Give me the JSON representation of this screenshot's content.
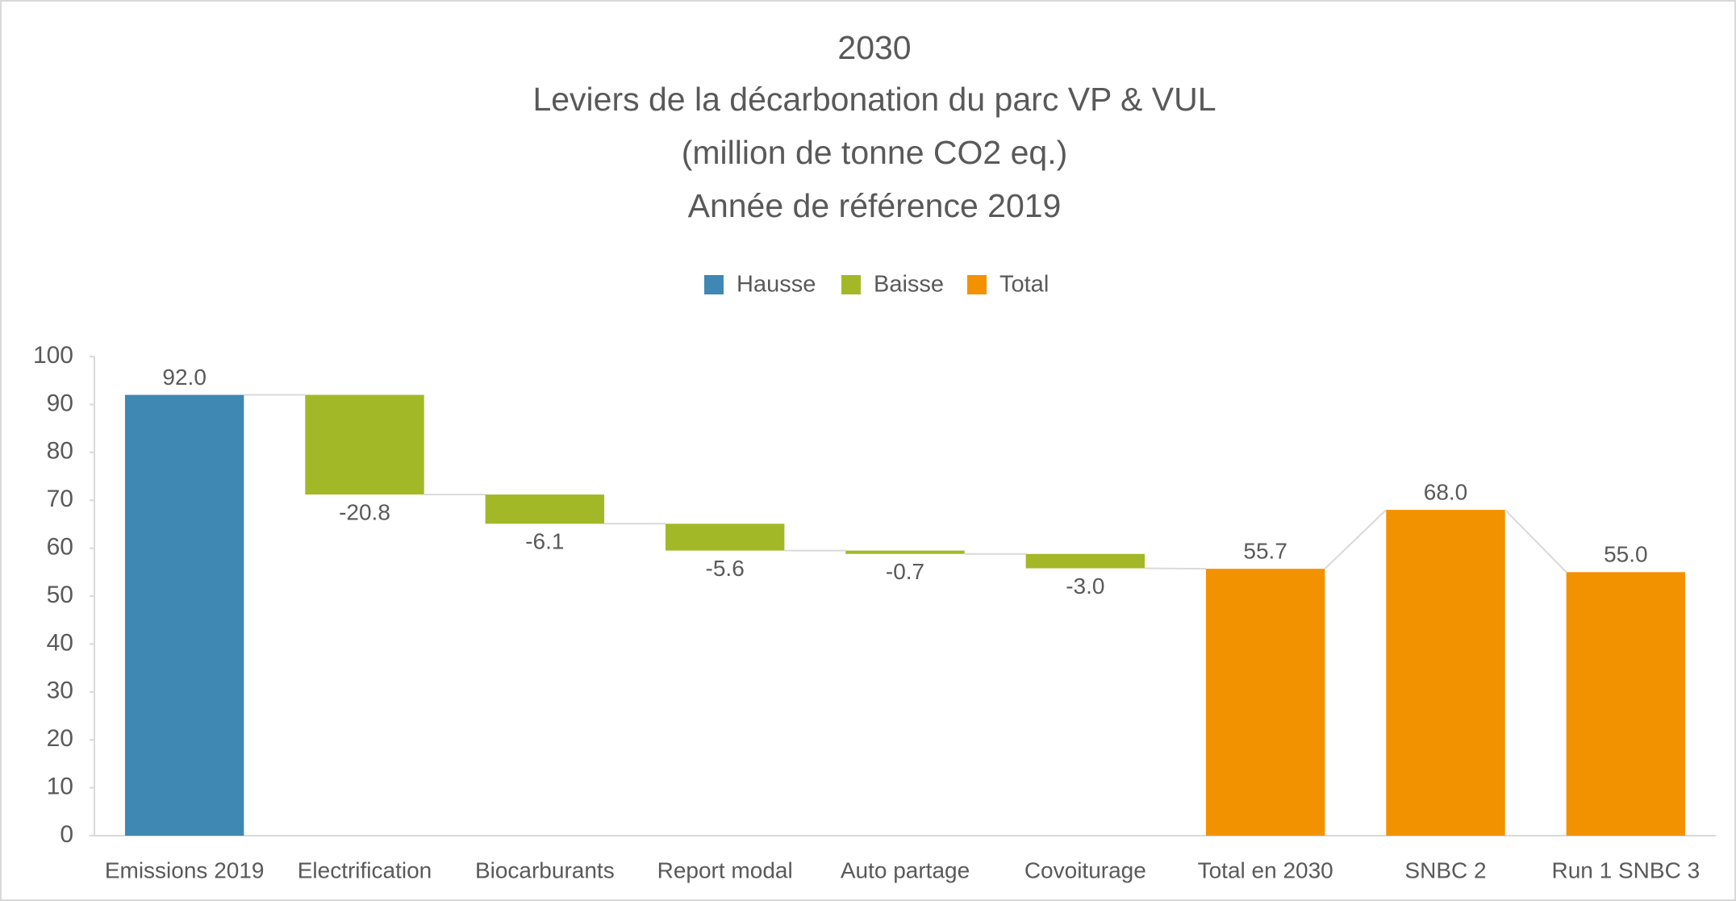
{
  "chart_data": {
    "type": "waterfall",
    "title": [
      "2030",
      "Leviers de la décarbonation du parc VP & VUL",
      "(million de tonne CO2 eq.)",
      "Année de référence 2019"
    ],
    "legend": [
      {
        "name": "Hausse",
        "color": "#3f88b3"
      },
      {
        "name": "Baisse",
        "color": "#a3b827"
      },
      {
        "name": "Total",
        "color": "#f39200"
      }
    ],
    "categories": [
      "Emissions 2019",
      "Electrification",
      "Biocarburants",
      "Report modal",
      "Auto partage",
      "Covoiturage",
      "Total en 2030",
      "SNBC 2",
      "Run 1 SNBC 3"
    ],
    "values": [
      92.0,
      -20.8,
      -6.1,
      -5.6,
      -0.7,
      -3.0,
      55.7,
      68.0,
      55.0
    ],
    "value_labels": [
      "92.0",
      "-20.8",
      "-6.1",
      "-5.6",
      "-0.7",
      "-3.0",
      "55.7",
      "68.0",
      "55.0"
    ],
    "bar_kinds": [
      "Hausse",
      "Baisse",
      "Baisse",
      "Baisse",
      "Baisse",
      "Baisse",
      "Total",
      "Total",
      "Total"
    ],
    "ylim": [
      0,
      100
    ],
    "yticks": [
      0,
      10,
      20,
      30,
      40,
      50,
      60,
      70,
      80,
      90,
      100
    ]
  }
}
